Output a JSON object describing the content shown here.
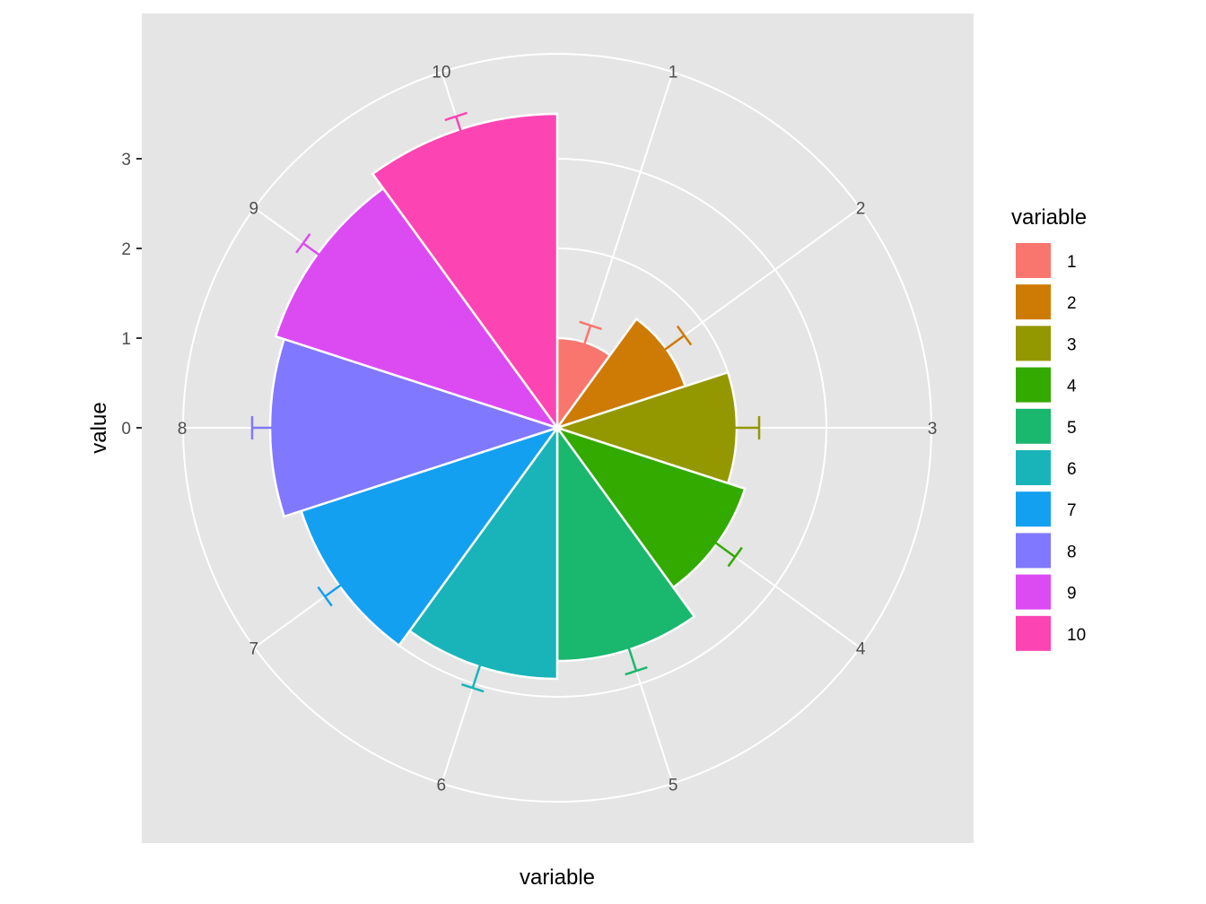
{
  "chart_data": {
    "type": "bar",
    "coord": "polar",
    "xlabel": "variable",
    "ylabel": "value",
    "ylim": [
      0,
      3.5
    ],
    "y_ticks": [
      "0",
      "1",
      "2",
      "3"
    ],
    "categories": [
      "1",
      "2",
      "3",
      "4",
      "5",
      "6",
      "7",
      "8",
      "9",
      "10"
    ],
    "values": [
      1.0,
      1.5,
      2.0,
      2.2,
      2.6,
      2.8,
      3.0,
      3.2,
      3.3,
      3.5
    ],
    "error_upper": [
      1.2,
      1.75,
      2.25,
      2.45,
      2.85,
      3.05,
      3.2,
      3.4,
      3.5,
      3.65
    ],
    "grid": true,
    "legend": {
      "title": "variable",
      "position": "right",
      "entries": [
        "1",
        "2",
        "3",
        "4",
        "5",
        "6",
        "7",
        "8",
        "9",
        "10"
      ]
    },
    "colors": [
      "#F8766D",
      "#D39200",
      "#93AA00",
      "#00BA38",
      "#00C19F",
      "#00B9E3",
      "#619CFF",
      "#DB72FB",
      "#FF61C3",
      "#FF61C3"
    ]
  },
  "colors": {
    "panel_background": "#E5E5E5",
    "grid": "#FFFFFF",
    "series": [
      "#F8766D",
      "#CD7B05",
      "#939800",
      "#33AA00",
      "#1AB76E",
      "#19B4BA",
      "#14A0F0",
      "#8078FF",
      "#DC4BF2",
      "#FC45B2"
    ]
  }
}
